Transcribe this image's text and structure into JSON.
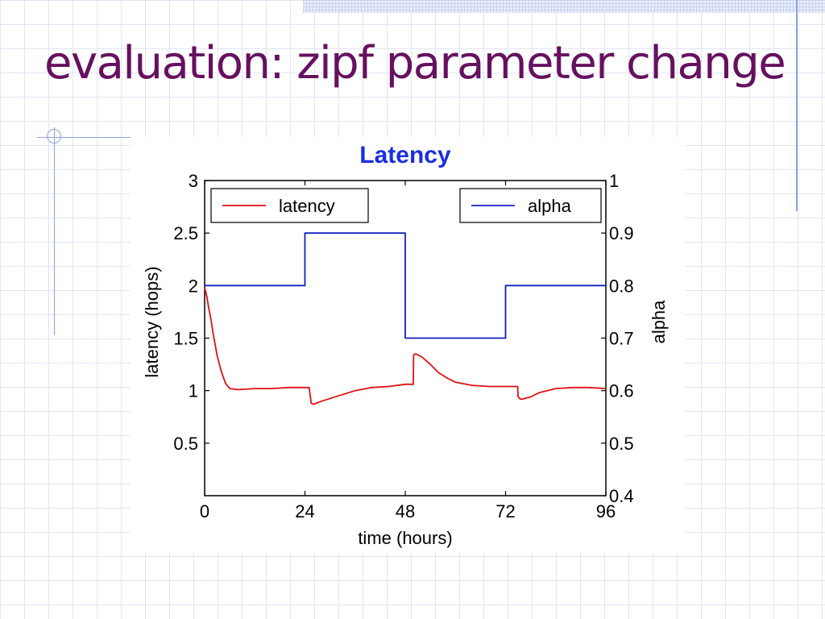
{
  "slide": {
    "title": "evaluation: zipf parameter change"
  },
  "colors": {
    "title": "#66105f",
    "chart_title": "#1a2fe0",
    "latency": "#e01010",
    "alpha": "#1020c0",
    "rules": "#8fa3de"
  },
  "chart_data": {
    "type": "line",
    "title": "Latency",
    "xlabel": "time (hours)",
    "ylabel": "latency (hops)",
    "y2label": "alpha",
    "xlim": [
      0,
      96
    ],
    "ylim": [
      0,
      3
    ],
    "y2lim": [
      0.4,
      1
    ],
    "x_ticks": [
      "0",
      "24",
      "48",
      "72",
      "96"
    ],
    "y_ticks": [
      "0.5",
      "1",
      "1.5",
      "2",
      "2.5",
      "3"
    ],
    "y2_ticks": [
      "0.4",
      "0.5",
      "0.6",
      "0.7",
      "0.8",
      "0.9",
      "1"
    ],
    "grid": false,
    "legend": [
      "top-left",
      "top-right"
    ],
    "series": [
      {
        "name": "latency",
        "axis": "left",
        "x": [
          0,
          0.5,
          1,
          1.5,
          2,
          3,
          4,
          5,
          6,
          8,
          12,
          16,
          20,
          24,
          25,
          25.5,
          26,
          28,
          32,
          36,
          40,
          44,
          48,
          49.9,
          50,
          50.5,
          52,
          54,
          56,
          58,
          60,
          64,
          68,
          72,
          74.9,
          75,
          75.5,
          76,
          78,
          80,
          84,
          88,
          92,
          96
        ],
        "y": [
          1.98,
          1.9,
          1.78,
          1.68,
          1.55,
          1.33,
          1.18,
          1.07,
          1.02,
          1.01,
          1.02,
          1.02,
          1.03,
          1.03,
          1.03,
          0.88,
          0.87,
          0.9,
          0.95,
          1.0,
          1.03,
          1.04,
          1.06,
          1.06,
          1.34,
          1.35,
          1.32,
          1.25,
          1.17,
          1.12,
          1.08,
          1.05,
          1.04,
          1.04,
          1.04,
          0.94,
          0.92,
          0.92,
          0.94,
          0.98,
          1.02,
          1.03,
          1.03,
          1.02
        ]
      },
      {
        "name": "alpha",
        "axis": "right",
        "x": [
          0,
          24,
          24,
          48,
          48,
          72,
          72,
          96
        ],
        "y": [
          0.8,
          0.8,
          0.9,
          0.9,
          0.7,
          0.7,
          0.8,
          0.8
        ]
      }
    ]
  }
}
